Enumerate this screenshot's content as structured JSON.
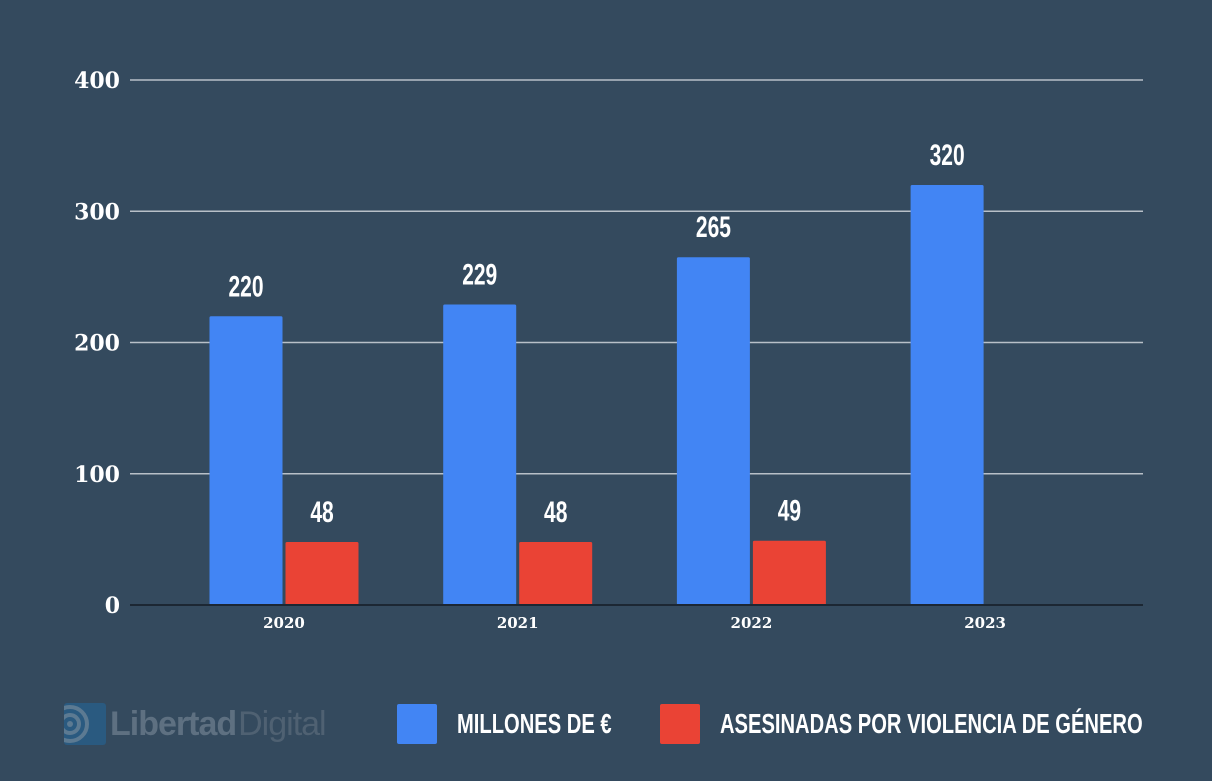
{
  "chart_data": {
    "type": "bar",
    "categories": [
      "2020",
      "2021",
      "2022",
      "2023"
    ],
    "series": [
      {
        "name": "MILLONES DE €",
        "color": "#4285f4",
        "values": [
          220,
          229,
          265,
          320
        ]
      },
      {
        "name": "ASESINADAS POR VIOLENCIA DE GÉNERO",
        "color": "#ea4335",
        "values": [
          48,
          48,
          49,
          null
        ]
      }
    ],
    "yticks": [
      "0",
      "100",
      "200",
      "300",
      "400"
    ],
    "ylim": [
      0,
      400
    ],
    "grid": true,
    "legend_position": "bottom",
    "title": "",
    "xlabel": "",
    "ylabel": ""
  },
  "logo": {
    "text1": "Libertad",
    "text2": "Digital"
  }
}
